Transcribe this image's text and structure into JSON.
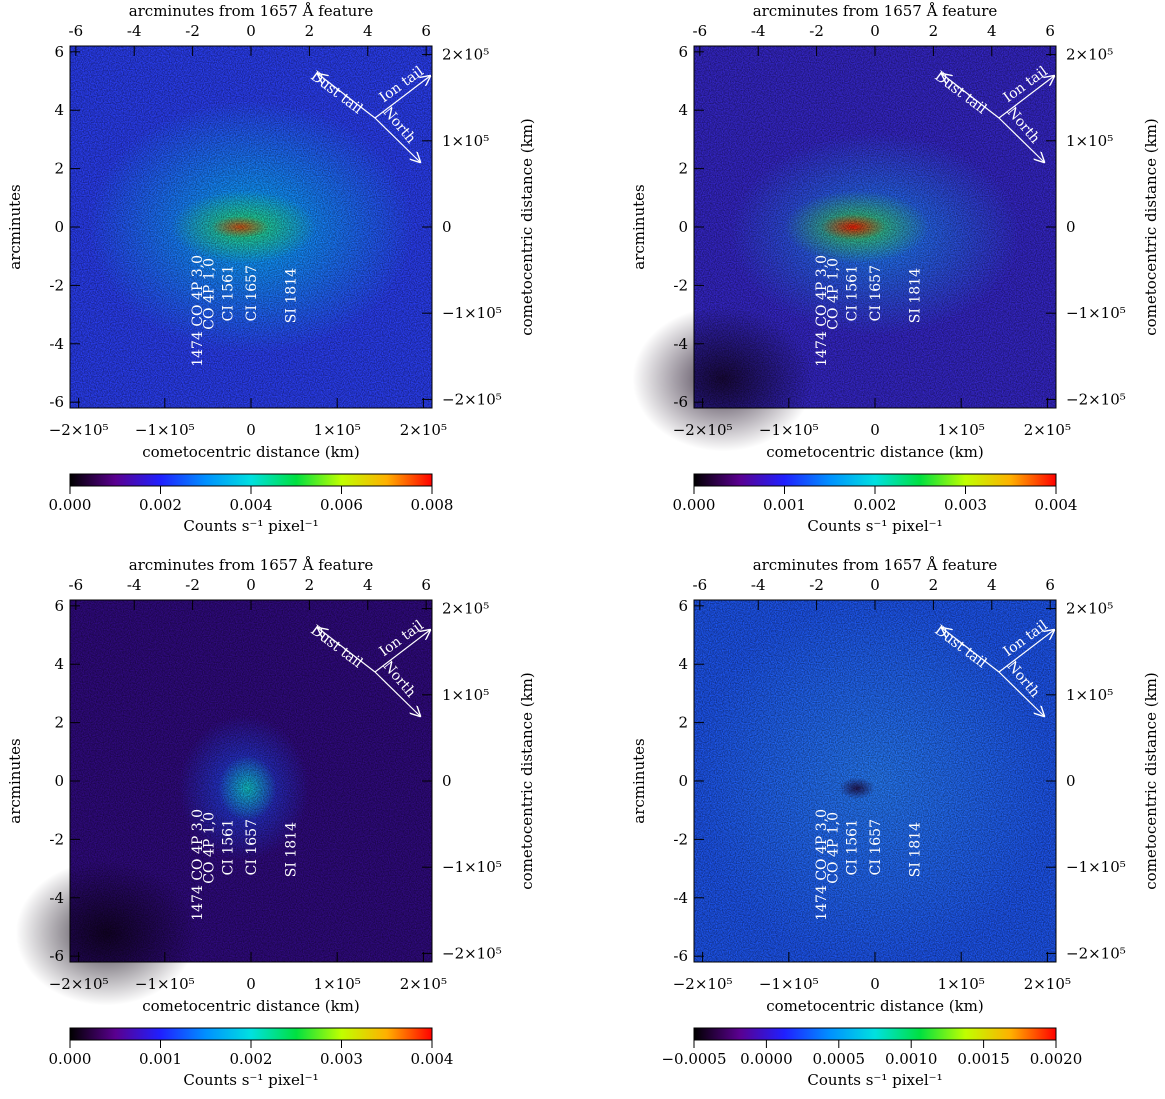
{
  "chart_data": [
    {
      "type": "image",
      "x_label": "arcminutes from 1657 Å feature",
      "xlim": [
        -6.2,
        6.2
      ],
      "xticks": [
        -6,
        -4,
        -2,
        0,
        2,
        4,
        6
      ],
      "y_label": "arcminutes",
      "ylim": [
        -6.2,
        6.2
      ],
      "yticks": [
        -6,
        -4,
        -2,
        0,
        2,
        4,
        6
      ],
      "x2_label": "cometocentric distance (km)",
      "x2lim": [
        -210000,
        210000
      ],
      "x2ticks": [
        {
          "value": -200000,
          "label": "−2×10⁵"
        },
        {
          "value": -100000,
          "label": "−1×10⁵"
        },
        0,
        {
          "value": 100000,
          "label": "1×10⁵"
        },
        {
          "value": 200000,
          "label": "2×10⁵"
        }
      ],
      "y2_label": "cometocentric distance (km)",
      "y2lim": [
        -210000,
        210000
      ],
      "y2ticks": [
        {
          "value": -200000,
          "label": "−2×10⁵"
        },
        {
          "value": -100000,
          "label": "−1×10⁵"
        },
        0,
        {
          "value": 100000,
          "label": "1×10⁵"
        },
        {
          "value": 200000,
          "label": "2×10⁵"
        }
      ],
      "colormap": [
        "#000000",
        "#5a008f",
        "#2020ff",
        "#0090ff",
        "#00e0e0",
        "#00e040",
        "#c0ff00",
        "#ffb000",
        "#ff0000"
      ],
      "colorbar": {
        "clim": [
          0,
          0.008
        ],
        "ticks": [
          {
            "value": 0,
            "label": "0.000"
          },
          {
            "value": 0.002,
            "label": "0.002"
          },
          {
            "value": 0.004,
            "label": "0.004"
          },
          {
            "value": 0.006,
            "label": "0.006"
          },
          {
            "value": 0.008,
            "label": "0.008"
          }
        ],
        "label": "Counts  s⁻¹ pixel⁻¹"
      },
      "features": [
        "1474 CO 4P 3,0",
        "CO 4P 1,0",
        "CI 1561",
        "CI 1657",
        "SI 1814"
      ],
      "annotations": [
        "Dust tail",
        "Ion tail",
        "North"
      ]
    },
    {
      "type": "image",
      "x_label": "arcminutes from 1657 Å feature",
      "xlim": [
        -6.2,
        6.2
      ],
      "xticks": [
        -6,
        -4,
        -2,
        0,
        2,
        4,
        6
      ],
      "y_label": "arcminutes",
      "ylim": [
        -6.2,
        6.2
      ],
      "yticks": [
        -6,
        -4,
        -2,
        0,
        2,
        4,
        6
      ],
      "x2_label": "cometocentric distance (km)",
      "x2lim": [
        -210000,
        210000
      ],
      "x2ticks": [
        {
          "value": -200000,
          "label": "−2×10⁵"
        },
        {
          "value": -100000,
          "label": "−1×10⁵"
        },
        0,
        {
          "value": 100000,
          "label": "1×10⁵"
        },
        {
          "value": 200000,
          "label": "2×10⁵"
        }
      ],
      "y2_label": "cometocentric distance (km)",
      "y2lim": [
        -210000,
        210000
      ],
      "y2ticks": [
        {
          "value": -200000,
          "label": "−2×10⁵"
        },
        {
          "value": -100000,
          "label": "−1×10⁵"
        },
        0,
        {
          "value": 100000,
          "label": "1×10⁵"
        },
        {
          "value": 200000,
          "label": "2×10⁵"
        }
      ],
      "colormap": [
        "#000000",
        "#5a008f",
        "#2020ff",
        "#0090ff",
        "#00e0e0",
        "#00e040",
        "#c0ff00",
        "#ffb000",
        "#ff0000"
      ],
      "colorbar": {
        "clim": [
          0,
          0.004
        ],
        "ticks": [
          {
            "value": 0,
            "label": "0.000"
          },
          {
            "value": 0.001,
            "label": "0.001"
          },
          {
            "value": 0.002,
            "label": "0.002"
          },
          {
            "value": 0.003,
            "label": "0.003"
          },
          {
            "value": 0.004,
            "label": "0.004"
          }
        ],
        "label": "Counts  s⁻¹ pixel⁻¹"
      },
      "features": [
        "1474 CO 4P 3,0",
        "CO 4P 1,0",
        "CI 1561",
        "CI 1657",
        "SI 1814"
      ],
      "annotations": [
        "Dust tail",
        "Ion tail",
        "North"
      ]
    },
    {
      "type": "image",
      "x_label": "arcminutes from 1657 Å feature",
      "xlim": [
        -6.2,
        6.2
      ],
      "xticks": [
        -6,
        -4,
        -2,
        0,
        2,
        4,
        6
      ],
      "y_label": "arcminutes",
      "ylim": [
        -6.2,
        6.2
      ],
      "yticks": [
        -6,
        -4,
        -2,
        0,
        2,
        4,
        6
      ],
      "x2_label": "cometocentric distance (km)",
      "x2lim": [
        -210000,
        210000
      ],
      "x2ticks": [
        {
          "value": -200000,
          "label": "−2×10⁵"
        },
        {
          "value": -100000,
          "label": "−1×10⁵"
        },
        0,
        {
          "value": 100000,
          "label": "1×10⁵"
        },
        {
          "value": 200000,
          "label": "2×10⁵"
        }
      ],
      "y2_label": "cometocentric distance (km)",
      "y2lim": [
        -210000,
        210000
      ],
      "y2ticks": [
        {
          "value": -200000,
          "label": "−2×10⁵"
        },
        {
          "value": -100000,
          "label": "−1×10⁵"
        },
        0,
        {
          "value": 100000,
          "label": "1×10⁵"
        },
        {
          "value": 200000,
          "label": "2×10⁵"
        }
      ],
      "colormap": [
        "#000000",
        "#5a008f",
        "#2020ff",
        "#0090ff",
        "#00e0e0",
        "#00e040",
        "#c0ff00",
        "#ffb000",
        "#ff0000"
      ],
      "colorbar": {
        "clim": [
          0,
          0.004
        ],
        "ticks": [
          {
            "value": 0,
            "label": "0.000"
          },
          {
            "value": 0.001,
            "label": "0.001"
          },
          {
            "value": 0.002,
            "label": "0.002"
          },
          {
            "value": 0.003,
            "label": "0.003"
          },
          {
            "value": 0.004,
            "label": "0.004"
          }
        ],
        "label": "Counts  s⁻¹ pixel⁻¹"
      },
      "features": [
        "1474 CO 4P 3,0",
        "CO 4P 1,0",
        "CI 1561",
        "CI 1657",
        "SI 1814"
      ],
      "annotations": [
        "Dust tail",
        "Ion tail",
        "North"
      ]
    },
    {
      "type": "image",
      "x_label": "arcminutes from 1657 Å feature",
      "xlim": [
        -6.2,
        6.2
      ],
      "xticks": [
        -6,
        -4,
        -2,
        0,
        2,
        4,
        6
      ],
      "y_label": "arcminutes",
      "ylim": [
        -6.2,
        6.2
      ],
      "yticks": [
        -6,
        -4,
        -2,
        0,
        2,
        4,
        6
      ],
      "x2_label": "cometocentric distance (km)",
      "x2lim": [
        -210000,
        210000
      ],
      "x2ticks": [
        {
          "value": -200000,
          "label": "−2×10⁵"
        },
        {
          "value": -100000,
          "label": "−1×10⁵"
        },
        0,
        {
          "value": 100000,
          "label": "1×10⁵"
        },
        {
          "value": 200000,
          "label": "2×10⁵"
        }
      ],
      "y2_label": "cometocentric distance (km)",
      "y2lim": [
        -210000,
        210000
      ],
      "y2ticks": [
        {
          "value": -200000,
          "label": "−2×10⁵"
        },
        {
          "value": -100000,
          "label": "−1×10⁵"
        },
        0,
        {
          "value": 100000,
          "label": "1×10⁵"
        },
        {
          "value": 200000,
          "label": "2×10⁵"
        }
      ],
      "colormap": [
        "#000000",
        "#5a008f",
        "#2020ff",
        "#0090ff",
        "#00e0e0",
        "#00e040",
        "#c0ff00",
        "#ffb000",
        "#ff0000"
      ],
      "colorbar": {
        "clim": [
          -0.0005,
          0.002
        ],
        "ticks": [
          {
            "value": -0.0005,
            "label": "−0.0005"
          },
          {
            "value": 0,
            "label": "0.0000"
          },
          {
            "value": 0.0005,
            "label": "0.0005"
          },
          {
            "value": 0.001,
            "label": "0.0010"
          },
          {
            "value": 0.0015,
            "label": "0.0015"
          },
          {
            "value": 0.002,
            "label": "0.0020"
          }
        ],
        "label": "Counts  s⁻¹ pixel⁻¹"
      },
      "features": [
        "1474 CO 4P 3,0",
        "CO 4P 1,0",
        "CI 1561",
        "CI 1657",
        "SI 1814"
      ],
      "annotations": [
        "Dust tail",
        "Ion tail",
        "North"
      ]
    }
  ]
}
